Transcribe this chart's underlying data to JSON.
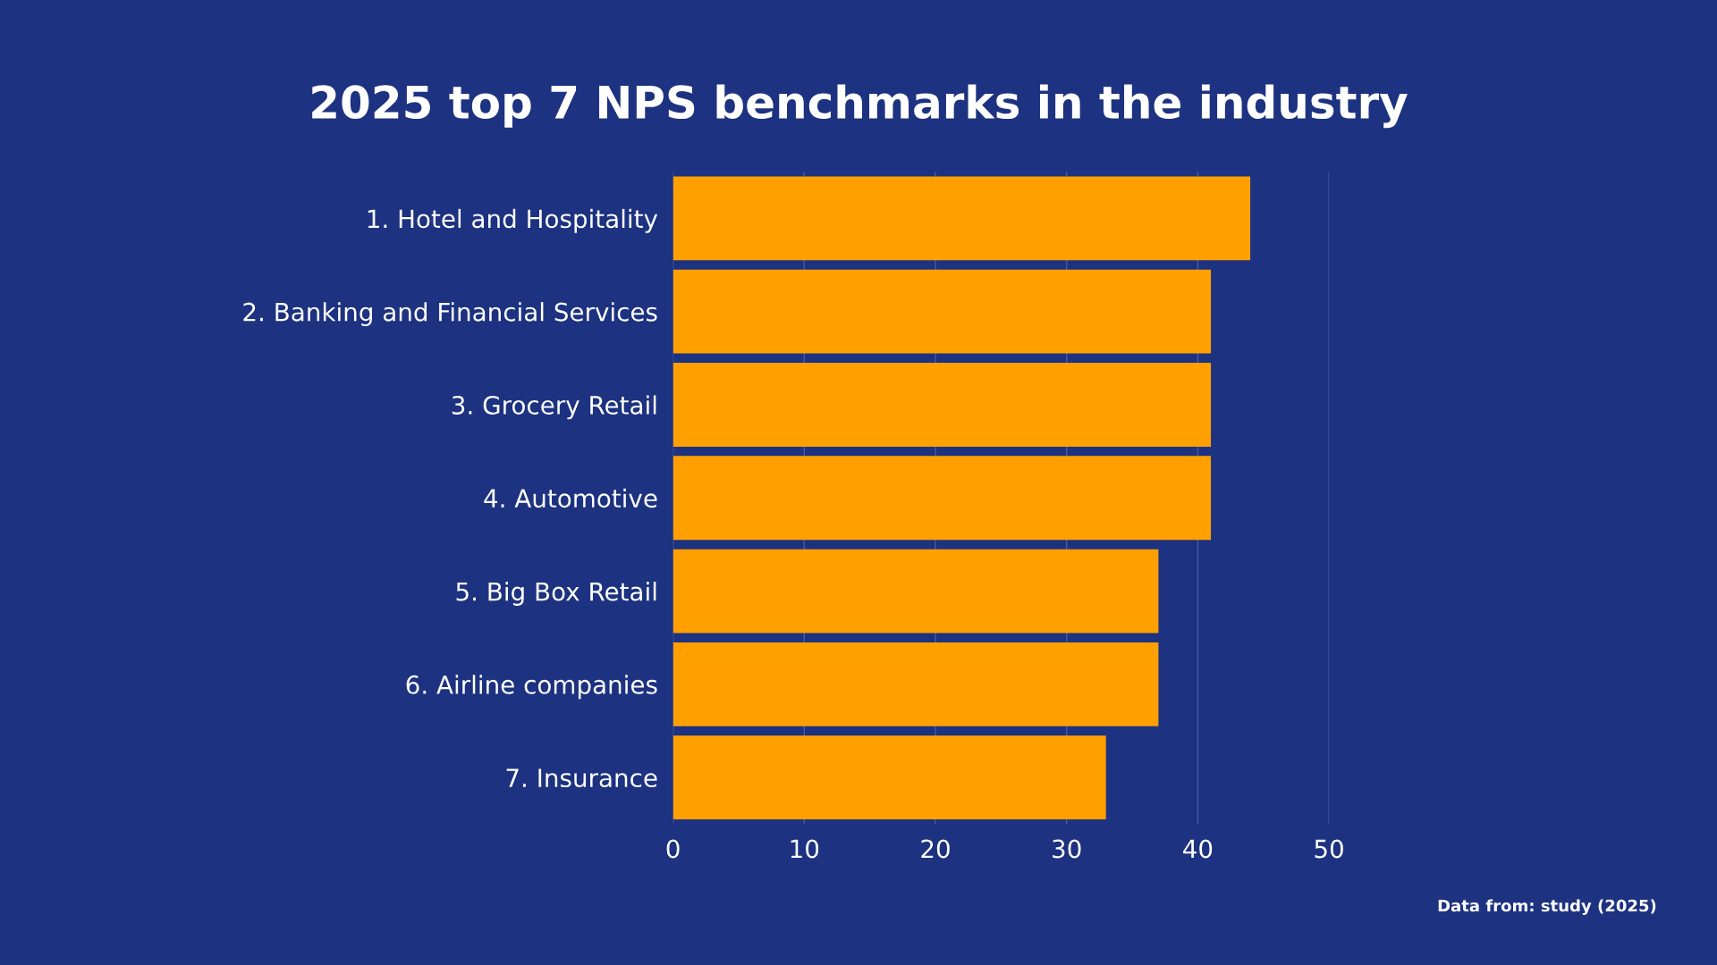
{
  "chart_data": {
    "type": "bar",
    "orientation": "horizontal",
    "title": "2025 top 7 NPS benchmarks in the industry",
    "categories": [
      "1. Hotel and Hospitality",
      "2. Banking and Financial Services",
      "3. Grocery Retail",
      "4. Automotive",
      "5. Big Box Retail",
      "6. Airline companies",
      "7. Insurance"
    ],
    "values": [
      44,
      41,
      41,
      41,
      37,
      37,
      33
    ],
    "color": "#ffa000",
    "xlim": [
      0,
      50
    ],
    "xticks": [
      0,
      10,
      20,
      30,
      40,
      50
    ],
    "grid": "x",
    "legend": false,
    "annotations": [
      "Data from: study (2025)"
    ]
  }
}
